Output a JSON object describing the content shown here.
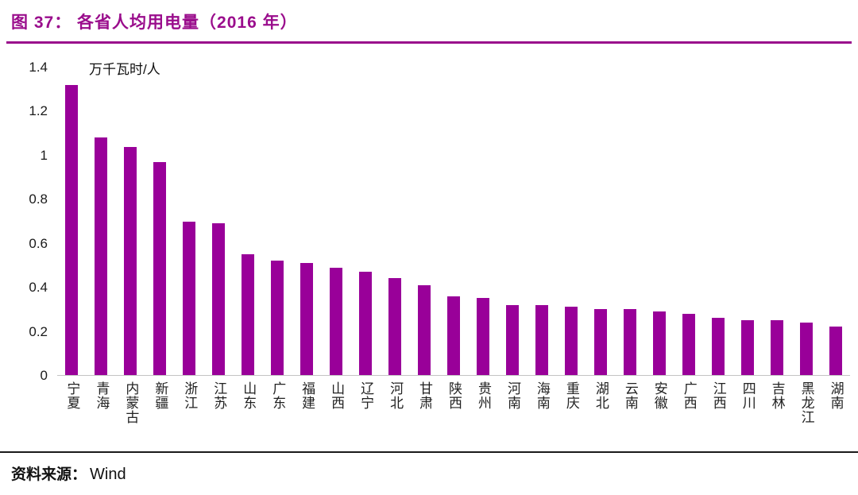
{
  "figure": {
    "title": "图 37：  各省人均用电量（2016 年）",
    "source_label": "资料来源：",
    "source_value": "Wind"
  },
  "colors": {
    "title": "#9A0D8C",
    "title_rule": "#9A0D8C",
    "bar": "#990099"
  },
  "chart_data": {
    "type": "bar",
    "title": "各省人均用电量（2016 年）",
    "unit_label": "万千瓦时/人",
    "xlabel": "",
    "ylabel": "万千瓦时/人",
    "ylim": [
      0,
      1.4
    ],
    "yticks": [
      0,
      0.2,
      0.4,
      0.6,
      0.8,
      1,
      1.2,
      1.4
    ],
    "ytick_labels": [
      "0",
      "0.2",
      "0.4",
      "0.6",
      "0.8",
      "1",
      "1.2",
      "1.4"
    ],
    "grid": false,
    "legend": "none",
    "bar_color": "#990099",
    "categories": [
      "宁夏",
      "青海",
      "内蒙古",
      "新疆",
      "浙江",
      "江苏",
      "山东",
      "广东",
      "福建",
      "山西",
      "辽宁",
      "河北",
      "甘肃",
      "陕西",
      "贵州",
      "河南",
      "海南",
      "重庆",
      "湖北",
      "云南",
      "安徽",
      "广西",
      "江西",
      "四川",
      "吉林",
      "黑龙江",
      "湖南"
    ],
    "values": [
      1.32,
      1.08,
      1.04,
      0.97,
      0.7,
      0.69,
      0.55,
      0.52,
      0.51,
      0.49,
      0.47,
      0.44,
      0.41,
      0.36,
      0.35,
      0.32,
      0.32,
      0.31,
      0.3,
      0.3,
      0.29,
      0.28,
      0.26,
      0.25,
      0.25,
      0.24,
      0.22
    ]
  }
}
